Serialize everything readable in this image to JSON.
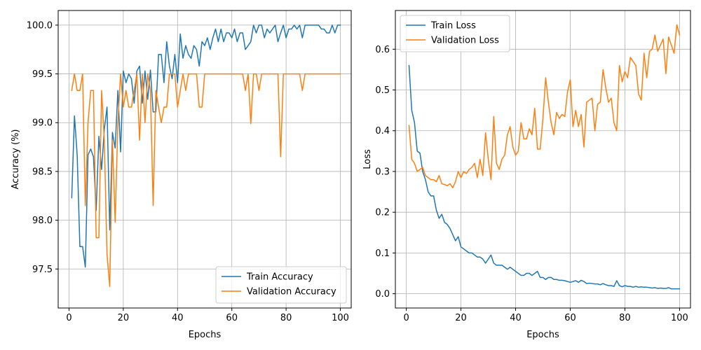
{
  "chart_data": [
    {
      "type": "line",
      "xlabel": "Epochs",
      "ylabel": "Accuracy (%)",
      "xlim": [
        -4,
        104
      ],
      "ylim": [
        97.1,
        100.15
      ],
      "xticks": [
        0,
        20,
        40,
        60,
        80,
        100
      ],
      "yticks": [
        97.5,
        98.0,
        98.5,
        99.0,
        99.5,
        100.0
      ],
      "ytick_labels": [
        "97.5",
        "98.0",
        "98.5",
        "99.0",
        "99.5",
        "100.0"
      ],
      "grid": true,
      "legend_position": "lower-right",
      "series": [
        {
          "name": "Train Accuracy",
          "color": "#1f77b4",
          "values": [
            98.23,
            99.07,
            98.67,
            97.73,
            97.73,
            97.52,
            98.67,
            98.73,
            98.65,
            98.1,
            98.86,
            98.52,
            98.93,
            99.16,
            97.9,
            98.9,
            98.74,
            99.33,
            98.7,
            99.53,
            99.41,
            99.5,
            99.45,
            99.2,
            99.53,
            99.58,
            99.2,
            99.53,
            99.24,
            99.54,
            99.11,
            99.11,
            99.7,
            99.7,
            99.41,
            99.83,
            99.58,
            99.45,
            99.7,
            99.41,
            99.91,
            99.66,
            99.79,
            99.7,
            99.66,
            99.79,
            99.75,
            99.58,
            99.83,
            99.79,
            99.87,
            99.75,
            99.87,
            99.96,
            99.83,
            99.96,
            99.83,
            99.92,
            99.92,
            99.87,
            99.96,
            99.83,
            99.92,
            99.92,
            99.75,
            99.79,
            99.83,
            100.0,
            99.92,
            100.0,
            100.0,
            99.87,
            99.96,
            99.92,
            99.96,
            100.0,
            99.83,
            99.92,
            100.0,
            99.87,
            99.96,
            99.96,
            100.0,
            99.96,
            100.0,
            99.87,
            100.0,
            100.0,
            100.0,
            100.0,
            100.0,
            100.0,
            99.96,
            99.96,
            99.92,
            99.92,
            100.0,
            99.92,
            100.0,
            100.0
          ]
        },
        {
          "name": "Validation Accuracy",
          "color": "#ff7f0e",
          "values": [
            99.33,
            99.5,
            99.33,
            99.33,
            99.5,
            98.15,
            99.0,
            99.33,
            99.33,
            97.82,
            97.82,
            99.33,
            98.82,
            97.65,
            97.32,
            98.82,
            97.98,
            99.0,
            99.5,
            99.16,
            99.33,
            99.16,
            99.16,
            99.33,
            99.5,
            98.82,
            99.5,
            99.0,
            99.5,
            99.33,
            98.15,
            99.33,
            99.16,
            99.0,
            99.16,
            99.16,
            99.5,
            99.5,
            99.5,
            99.16,
            99.33,
            99.5,
            99.33,
            99.5,
            99.5,
            99.5,
            99.5,
            99.16,
            99.16,
            99.5,
            99.5,
            99.5,
            99.5,
            99.5,
            99.5,
            99.5,
            99.5,
            99.5,
            99.5,
            99.5,
            99.5,
            99.5,
            99.5,
            99.5,
            99.33,
            99.5,
            98.99,
            99.5,
            99.5,
            99.33,
            99.5,
            99.5,
            99.5,
            99.5,
            99.5,
            99.5,
            99.5,
            98.65,
            99.5,
            99.5,
            99.5,
            99.5,
            99.5,
            99.5,
            99.5,
            99.33,
            99.5,
            99.5,
            99.5,
            99.5,
            99.5,
            99.5,
            99.5,
            99.5,
            99.5,
            99.5,
            99.5,
            99.5,
            99.5,
            99.5
          ]
        }
      ]
    },
    {
      "type": "line",
      "xlabel": "Epochs",
      "ylabel": "Loss",
      "xlim": [
        -4,
        104
      ],
      "ylim": [
        -0.035,
        0.695
      ],
      "xticks": [
        0,
        20,
        40,
        60,
        80,
        100
      ],
      "yticks": [
        0.0,
        0.1,
        0.2,
        0.3,
        0.4,
        0.5,
        0.6
      ],
      "ytick_labels": [
        "0.0",
        "0.1",
        "0.2",
        "0.3",
        "0.4",
        "0.5",
        "0.6"
      ],
      "grid": true,
      "legend_position": "upper-left",
      "series": [
        {
          "name": "Train Loss",
          "color": "#1f77b4",
          "values": [
            0.56,
            0.45,
            0.42,
            0.35,
            0.345,
            0.3,
            0.28,
            0.25,
            0.24,
            0.24,
            0.205,
            0.185,
            0.195,
            0.175,
            0.17,
            0.16,
            0.145,
            0.13,
            0.14,
            0.115,
            0.11,
            0.105,
            0.1,
            0.1,
            0.095,
            0.09,
            0.09,
            0.085,
            0.075,
            0.085,
            0.095,
            0.075,
            0.07,
            0.07,
            0.07,
            0.065,
            0.06,
            0.065,
            0.06,
            0.055,
            0.05,
            0.045,
            0.045,
            0.05,
            0.05,
            0.045,
            0.05,
            0.055,
            0.04,
            0.04,
            0.035,
            0.04,
            0.04,
            0.035,
            0.035,
            0.033,
            0.033,
            0.032,
            0.03,
            0.028,
            0.03,
            0.032,
            0.028,
            0.033,
            0.03,
            0.025,
            0.026,
            0.025,
            0.024,
            0.024,
            0.022,
            0.025,
            0.022,
            0.02,
            0.02,
            0.018,
            0.032,
            0.02,
            0.017,
            0.02,
            0.018,
            0.018,
            0.016,
            0.018,
            0.016,
            0.017,
            0.016,
            0.016,
            0.015,
            0.014,
            0.015,
            0.013,
            0.014,
            0.013,
            0.013,
            0.015,
            0.012,
            0.012,
            0.012,
            0.012
          ]
        },
        {
          "name": "Validation Loss",
          "color": "#ff7f0e",
          "values": [
            0.413,
            0.33,
            0.32,
            0.3,
            0.305,
            0.31,
            0.29,
            0.285,
            0.28,
            0.28,
            0.275,
            0.29,
            0.27,
            0.268,
            0.265,
            0.27,
            0.26,
            0.275,
            0.3,
            0.285,
            0.3,
            0.295,
            0.305,
            0.31,
            0.32,
            0.285,
            0.33,
            0.29,
            0.395,
            0.33,
            0.28,
            0.435,
            0.32,
            0.305,
            0.33,
            0.34,
            0.39,
            0.41,
            0.36,
            0.34,
            0.35,
            0.42,
            0.38,
            0.38,
            0.405,
            0.39,
            0.455,
            0.355,
            0.355,
            0.43,
            0.53,
            0.47,
            0.42,
            0.39,
            0.445,
            0.43,
            0.44,
            0.435,
            0.495,
            0.525,
            0.41,
            0.45,
            0.41,
            0.44,
            0.36,
            0.47,
            0.475,
            0.48,
            0.4,
            0.465,
            0.47,
            0.55,
            0.505,
            0.47,
            0.48,
            0.42,
            0.4,
            0.56,
            0.52,
            0.545,
            0.53,
            0.58,
            0.57,
            0.56,
            0.49,
            0.475,
            0.59,
            0.53,
            0.595,
            0.6,
            0.635,
            0.595,
            0.61,
            0.625,
            0.54,
            0.63,
            0.61,
            0.59,
            0.66,
            0.635
          ]
        }
      ]
    }
  ]
}
